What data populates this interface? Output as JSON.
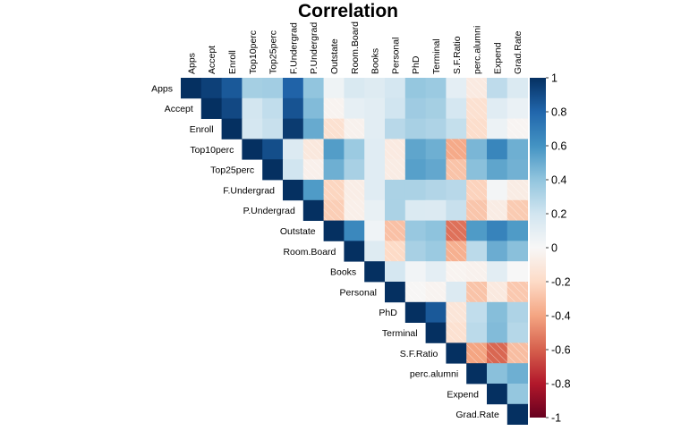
{
  "chart_data": {
    "type": "heatmap",
    "title": "Correlation",
    "shape": "upper-triangle",
    "variables": [
      "Apps",
      "Accept",
      "Enroll",
      "Top10perc",
      "Top25perc",
      "F.Undergrad",
      "P.Undergrad",
      "Outstate",
      "Room.Board",
      "Books",
      "Personal",
      "PhD",
      "Terminal",
      "S.F.Ratio",
      "perc.alumni",
      "Expend",
      "Grad.Rate"
    ],
    "values": [
      [
        1.0,
        0.94,
        0.85,
        0.34,
        0.35,
        0.81,
        0.4,
        0.05,
        0.16,
        0.13,
        0.18,
        0.39,
        0.37,
        0.1,
        -0.09,
        0.26,
        0.15
      ],
      [
        null,
        1.0,
        0.91,
        0.19,
        0.25,
        0.87,
        0.44,
        -0.03,
        0.09,
        0.11,
        0.2,
        0.36,
        0.34,
        0.18,
        -0.16,
        0.12,
        0.07
      ],
      [
        null,
        null,
        1.0,
        0.18,
        0.23,
        0.96,
        0.51,
        -0.16,
        -0.04,
        0.11,
        0.28,
        0.33,
        0.31,
        0.24,
        -0.18,
        0.06,
        -0.02
      ],
      [
        null,
        null,
        null,
        1.0,
        0.89,
        0.14,
        -0.11,
        0.56,
        0.37,
        0.12,
        -0.09,
        0.53,
        0.49,
        -0.38,
        0.46,
        0.66,
        0.49
      ],
      [
        null,
        null,
        null,
        null,
        1.0,
        0.2,
        -0.05,
        0.49,
        0.33,
        0.12,
        -0.08,
        0.55,
        0.52,
        -0.29,
        0.42,
        0.53,
        0.48
      ],
      [
        null,
        null,
        null,
        null,
        null,
        1.0,
        0.57,
        -0.22,
        -0.07,
        0.12,
        0.32,
        0.32,
        0.3,
        0.28,
        -0.23,
        0.02,
        -0.08
      ],
      [
        null,
        null,
        null,
        null,
        null,
        null,
        1.0,
        -0.25,
        -0.06,
        0.08,
        0.32,
        0.15,
        0.14,
        0.23,
        -0.28,
        -0.08,
        -0.26
      ],
      [
        null,
        null,
        null,
        null,
        null,
        null,
        null,
        1.0,
        0.65,
        0.04,
        -0.3,
        0.38,
        0.41,
        -0.55,
        0.57,
        0.67,
        0.57
      ],
      [
        null,
        null,
        null,
        null,
        null,
        null,
        null,
        null,
        1.0,
        0.13,
        -0.2,
        0.33,
        0.37,
        -0.36,
        0.27,
        0.5,
        0.42
      ],
      [
        null,
        null,
        null,
        null,
        null,
        null,
        null,
        null,
        null,
        1.0,
        0.18,
        0.03,
        0.1,
        -0.03,
        -0.04,
        0.11,
        0.0
      ],
      [
        null,
        null,
        null,
        null,
        null,
        null,
        null,
        null,
        null,
        null,
        1.0,
        -0.01,
        -0.03,
        0.14,
        -0.29,
        -0.1,
        -0.27
      ],
      [
        null,
        null,
        null,
        null,
        null,
        null,
        null,
        null,
        null,
        null,
        null,
        1.0,
        0.85,
        -0.13,
        0.25,
        0.43,
        0.31
      ],
      [
        null,
        null,
        null,
        null,
        null,
        null,
        null,
        null,
        null,
        null,
        null,
        null,
        1.0,
        -0.16,
        0.27,
        0.44,
        0.29
      ],
      [
        null,
        null,
        null,
        null,
        null,
        null,
        null,
        null,
        null,
        null,
        null,
        null,
        null,
        1.0,
        -0.4,
        -0.58,
        -0.31
      ],
      [
        null,
        null,
        null,
        null,
        null,
        null,
        null,
        null,
        null,
        null,
        null,
        null,
        null,
        null,
        1.0,
        0.42,
        0.49
      ],
      [
        null,
        null,
        null,
        null,
        null,
        null,
        null,
        null,
        null,
        null,
        null,
        null,
        null,
        null,
        null,
        1.0,
        0.39
      ],
      [
        null,
        null,
        null,
        null,
        null,
        null,
        null,
        null,
        null,
        null,
        null,
        null,
        null,
        null,
        null,
        null,
        1.0
      ]
    ],
    "color_scale": {
      "range": [
        -1,
        1
      ],
      "ticks": [
        "-1",
        "-0.8",
        "-0.6",
        "-0.4",
        "-0.2",
        "0",
        "0.2",
        "0.4",
        "0.6",
        "0.8",
        "1"
      ],
      "negative_color": "#67001F",
      "mid_color": "#F7F7F7",
      "positive_color": "#053061",
      "legend_position": "right"
    },
    "negative_cells_hatched": true
  }
}
